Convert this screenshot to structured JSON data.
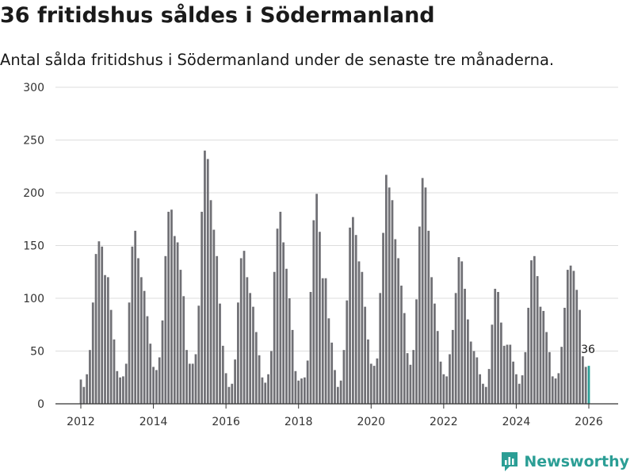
{
  "header": {
    "title": "36 fritidshus såldes i Södermanland",
    "subtitle": "Antal sålda fritidshus i Södermanland under de senaste tre månaderna."
  },
  "brand": {
    "name": "Newsworthy",
    "color": "#2b9e95"
  },
  "colors": {
    "bar": "#707075",
    "highlight": "#2b9e95",
    "grid": "#dddddd"
  },
  "chart_data": {
    "type": "bar",
    "title": "36 fritidshus såldes i Södermanland",
    "subtitle": "Antal sålda fritidshus i Södermanland under de senaste tre månaderna.",
    "xlabel": "",
    "ylabel": "",
    "ylim": [
      0,
      300
    ],
    "yticks": [
      0,
      50,
      100,
      150,
      200,
      250,
      300
    ],
    "xticks": [
      "2012",
      "2014",
      "2016",
      "2018",
      "2020",
      "2022",
      "2024",
      "2026"
    ],
    "grid": true,
    "x_start": "2012-01",
    "x_end": "2026-01",
    "highlight_label": "36",
    "values": [
      23,
      16,
      28,
      51,
      96,
      142,
      154,
      149,
      122,
      120,
      89,
      61,
      31,
      25,
      26,
      38,
      96,
      149,
      164,
      138,
      120,
      107,
      83,
      57,
      35,
      32,
      44,
      79,
      140,
      182,
      184,
      159,
      153,
      127,
      102,
      51,
      38,
      38,
      47,
      93,
      182,
      240,
      232,
      193,
      165,
      140,
      95,
      55,
      29,
      16,
      19,
      42,
      96,
      138,
      145,
      120,
      105,
      92,
      68,
      46,
      25,
      20,
      28,
      50,
      125,
      166,
      182,
      153,
      128,
      100,
      70,
      31,
      22,
      24,
      25,
      41,
      106,
      174,
      199,
      163,
      119,
      119,
      81,
      58,
      32,
      16,
      22,
      51,
      98,
      167,
      177,
      160,
      135,
      125,
      92,
      61,
      38,
      36,
      43,
      105,
      162,
      217,
      205,
      193,
      156,
      138,
      112,
      86,
      48,
      37,
      51,
      99,
      168,
      214,
      205,
      164,
      120,
      95,
      69,
      40,
      28,
      26,
      47,
      70,
      105,
      139,
      135,
      109,
      80,
      59,
      50,
      44,
      28,
      19,
      16,
      33,
      75,
      109,
      106,
      77,
      55,
      56,
      56,
      40,
      28,
      19,
      27,
      49,
      91,
      136,
      140,
      121,
      92,
      88,
      68,
      49,
      26,
      24,
      29,
      54,
      91,
      127,
      131,
      126,
      108,
      89,
      45,
      35,
      36
    ]
  }
}
